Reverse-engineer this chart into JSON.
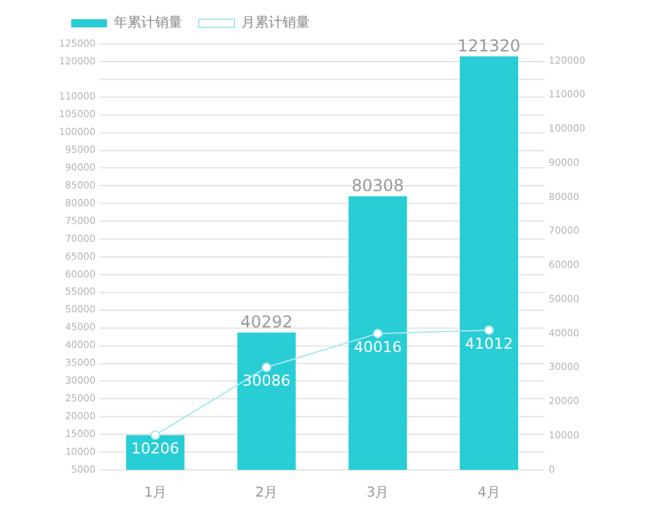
{
  "chart_data": {
    "type": "bar",
    "categories": [
      "1月",
      "2月",
      "3月",
      "4月"
    ],
    "series": [
      {
        "name": "年累计销量",
        "color": "#29cdd5",
        "axis": "y2",
        "values": [
          10206,
          40292,
          80308,
          121320
        ],
        "value_labels": [
          null,
          "40292",
          "80308",
          "121320"
        ]
      },
      {
        "name": "月累计销量",
        "type": "line",
        "color": "#a9e7ee",
        "axis": "y2",
        "values": [
          10206,
          30086,
          40016,
          41012
        ],
        "marker": "circle",
        "data_labels": true
      }
    ],
    "ylim": [
      5000,
      125000
    ],
    "yticks": [
      5000,
      10000,
      15000,
      20000,
      25000,
      30000,
      35000,
      40000,
      45000,
      50000,
      55000,
      60000,
      65000,
      70000,
      75000,
      80000,
      85000,
      90000,
      95000,
      100000,
      105000,
      110000,
      {
        "value": 115000,
        "label": null
      },
      120000,
      125000
    ],
    "y2lim": [
      0,
      125000
    ],
    "y2ticks": [
      0,
      10000,
      20000,
      30000,
      40000,
      50000,
      60000,
      70000,
      80000,
      90000,
      100000,
      110000,
      120000
    ],
    "grid": "y",
    "legend": "top left"
  }
}
